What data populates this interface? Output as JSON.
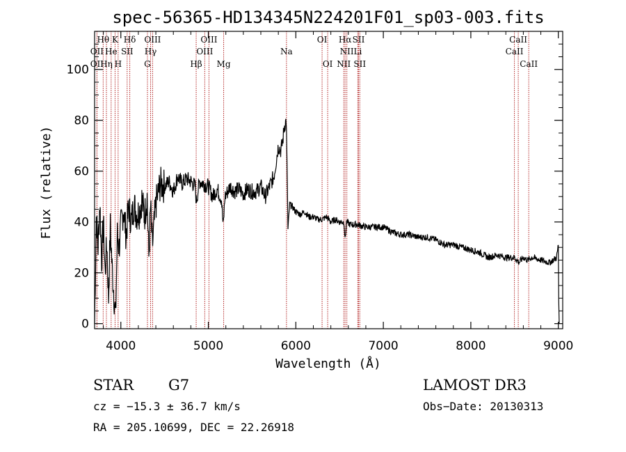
{
  "chart_data": {
    "type": "line",
    "title": "spec-56365-HD134345N224201F01_sp03-003.fits",
    "xlabel": "Wavelength (Å)",
    "ylabel": "Flux (relative)",
    "xlim": [
      3700,
      9050
    ],
    "ylim": [
      -2,
      115
    ],
    "x_ticks": [
      4000,
      5000,
      6000,
      7000,
      8000,
      9000
    ],
    "y_ticks": [
      0,
      20,
      40,
      60,
      80,
      100
    ],
    "x_tick_labels": [
      "4000",
      "5000",
      "6000",
      "7000",
      "8000",
      "9000"
    ],
    "y_tick_labels": [
      "0",
      "20",
      "40",
      "60",
      "80",
      "100"
    ],
    "series": [
      {
        "name": "flux",
        "color": "#000000",
        "x": [
          3700,
          3720,
          3740,
          3760,
          3780,
          3800,
          3820,
          3840,
          3860,
          3880,
          3900,
          3920,
          3940,
          3960,
          3980,
          4000,
          4030,
          4060,
          4090,
          4120,
          4150,
          4180,
          4210,
          4240,
          4270,
          4300,
          4320,
          4340,
          4360,
          4400,
          4450,
          4500,
          4550,
          4600,
          4650,
          4700,
          4750,
          4800,
          4850,
          4862,
          4900,
          4950,
          5000,
          5050,
          5100,
          5150,
          5170,
          5190,
          5250,
          5300,
          5350,
          5400,
          5450,
          5500,
          5550,
          5600,
          5650,
          5700,
          5750,
          5800,
          5830,
          5850,
          5870,
          5890,
          5900,
          5910,
          5930,
          5960,
          6000,
          6050,
          6100,
          6150,
          6200,
          6250,
          6300,
          6350,
          6400,
          6450,
          6500,
          6550,
          6563,
          6580,
          6620,
          6700,
          6800,
          6900,
          7000,
          7100,
          7200,
          7300,
          7400,
          7500,
          7600,
          7700,
          7800,
          7900,
          8000,
          8100,
          8200,
          8300,
          8400,
          8500,
          8550,
          8600,
          8650,
          8700,
          8800,
          8900,
          8980,
          9000,
          9005,
          9010
        ],
        "y": [
          0,
          42,
          30,
          48,
          25,
          40,
          20,
          32,
          10,
          38,
          22,
          12,
          2,
          35,
          30,
          38,
          45,
          35,
          46,
          40,
          47,
          43,
          44,
          49,
          42,
          50,
          26,
          46,
          30,
          47,
          55,
          54,
          56,
          52,
          58,
          55,
          57,
          56,
          54,
          48,
          56,
          55,
          54,
          50,
          53,
          49,
          38,
          50,
          54,
          52,
          53,
          51,
          53,
          52,
          52,
          54,
          50,
          54,
          58,
          70,
          68,
          72,
          78,
          80,
          62,
          37,
          47,
          46,
          44,
          43,
          44,
          42,
          42,
          41,
          41,
          42,
          40,
          41,
          40,
          40,
          33,
          40,
          39,
          39,
          38,
          38,
          38,
          36,
          35,
          35,
          34,
          34,
          33,
          31,
          31,
          30,
          29,
          28,
          26,
          27,
          26,
          26,
          24,
          26,
          25,
          26,
          25,
          24,
          26,
          31,
          9,
          0
        ]
      }
    ],
    "spectral_lines": [
      {
        "label": "OII",
        "wavelength": 3727,
        "row": 2
      },
      {
        "label": "OII",
        "wavelength": 3727,
        "row": 1
      },
      {
        "label": "Hθ",
        "wavelength": 3798,
        "row": 0
      },
      {
        "label": "He",
        "wavelength": 3889,
        "row": 1
      },
      {
        "label": "Hη",
        "wavelength": 3835,
        "row": 2
      },
      {
        "label": "K",
        "wavelength": 3934,
        "row": 0
      },
      {
        "label": "SII",
        "wavelength": 4072,
        "row": 1
      },
      {
        "label": "H",
        "wavelength": 3969,
        "row": 2
      },
      {
        "label": "Hδ",
        "wavelength": 4102,
        "row": 0
      },
      {
        "label": "OIII",
        "wavelength": 4363,
        "row": 0
      },
      {
        "label": "Hγ",
        "wavelength": 4340,
        "row": 1
      },
      {
        "label": "G",
        "wavelength": 4304,
        "row": 2
      },
      {
        "label": "OIII",
        "wavelength": 5007,
        "row": 0
      },
      {
        "label": "OIII",
        "wavelength": 4959,
        "row": 1
      },
      {
        "label": "Hβ",
        "wavelength": 4861,
        "row": 2
      },
      {
        "label": "Mg",
        "wavelength": 5175,
        "row": 2
      },
      {
        "label": "Na",
        "wavelength": 5893,
        "row": 1
      },
      {
        "label": "OI",
        "wavelength": 6300,
        "row": 0
      },
      {
        "label": "OI",
        "wavelength": 6364,
        "row": 2
      },
      {
        "label": "Hα",
        "wavelength": 6563,
        "row": 0
      },
      {
        "label": "SII",
        "wavelength": 6717,
        "row": 0
      },
      {
        "label": "NII",
        "wavelength": 6583,
        "row": 1
      },
      {
        "label": "Li",
        "wavelength": 6708,
        "row": 1
      },
      {
        "label": "NII",
        "wavelength": 6548,
        "row": 2
      },
      {
        "label": "SII",
        "wavelength": 6731,
        "row": 2
      },
      {
        "label": "CaII",
        "wavelength": 8542,
        "row": 0
      },
      {
        "label": "CaII",
        "wavelength": 8498,
        "row": 1
      },
      {
        "label": "CaII",
        "wavelength": 8662,
        "row": 2
      }
    ],
    "line_marker_color": "#b22222"
  },
  "info": {
    "object_type": "STAR",
    "subclass": "G7",
    "survey": "LAMOST DR3",
    "cz": "cz = −15.3 ± 36.7 km/s",
    "obs_date": "Obs−Date: 20130313",
    "coords": "RA = 205.10699, DEC =  22.26918"
  }
}
